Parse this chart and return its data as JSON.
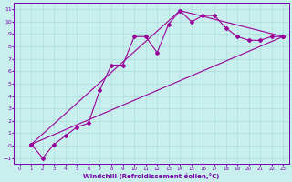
{
  "xlabel": "Windchill (Refroidissement éolien,°C)",
  "bg_color": "#c8eeee",
  "grid_color": "#aadddd",
  "line_color": "#990099",
  "spine_color": "#7700aa",
  "xlim": [
    -0.5,
    23.5
  ],
  "ylim": [
    -1.5,
    11.5
  ],
  "xticks": [
    0,
    1,
    2,
    3,
    4,
    5,
    6,
    7,
    8,
    9,
    10,
    11,
    12,
    13,
    14,
    15,
    16,
    17,
    18,
    19,
    20,
    21,
    22,
    23
  ],
  "yticks": [
    -1,
    0,
    1,
    2,
    3,
    4,
    5,
    6,
    7,
    8,
    9,
    10,
    11
  ],
  "curve1_x": [
    1,
    2,
    3,
    4,
    5,
    6,
    7,
    8,
    9,
    10,
    11,
    12,
    13,
    14,
    15,
    16,
    17,
    18,
    19,
    20,
    21,
    22,
    23
  ],
  "curve1_y": [
    0.1,
    -1.0,
    0.1,
    0.8,
    1.5,
    1.8,
    4.5,
    6.5,
    6.5,
    8.8,
    8.8,
    7.5,
    9.8,
    10.9,
    10.0,
    10.5,
    10.5,
    9.5,
    8.8,
    8.5,
    8.5,
    8.8,
    8.8
  ],
  "curve2_x": [
    1,
    23
  ],
  "curve2_y": [
    0.1,
    8.8
  ],
  "curve3_x": [
    1,
    14,
    23
  ],
  "curve3_y": [
    0.1,
    10.9,
    8.8
  ]
}
